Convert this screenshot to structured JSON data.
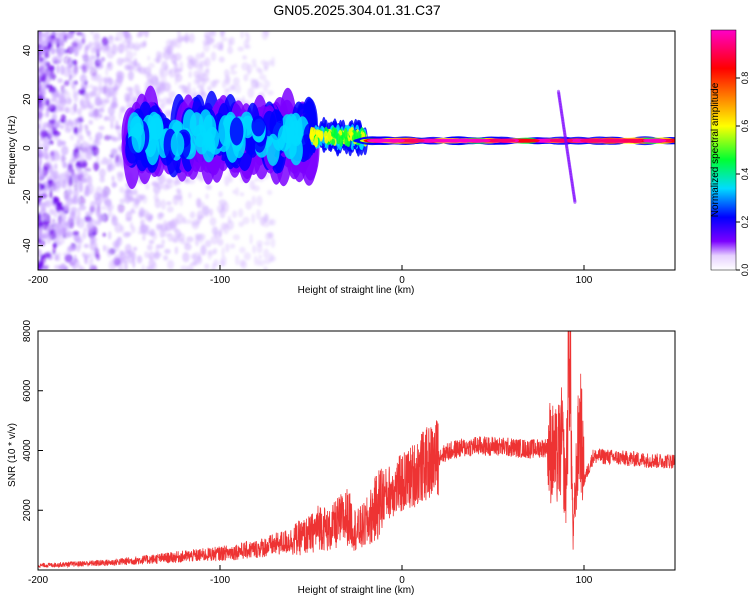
{
  "figure": {
    "title": "GN05.2025.304.01.31.C37"
  },
  "chart_data": [
    {
      "type": "heatmap",
      "title": "",
      "xlabel": "Height of straight line (km)",
      "ylabel": "Frequency (Hz)",
      "xlim": [
        -200,
        150
      ],
      "ylim": [
        -50,
        48
      ],
      "xticks": [
        -200,
        -100,
        0,
        100
      ],
      "yticks": [
        -40,
        -20,
        0,
        20,
        40
      ],
      "colorbar": {
        "label": "Normalized spectral amplitude",
        "range": [
          0,
          1
        ],
        "ticks": [
          "0.0",
          "0.2",
          "0.4",
          "0.6",
          "0.8"
        ],
        "colors": [
          "#ffffff",
          "#7b00ff",
          "#0000ff",
          "#00dcff",
          "#00ff32",
          "#ffff00",
          "#ff8000",
          "#ff0000",
          "#ff0064",
          "#ff00c8"
        ]
      },
      "features": [
        {
          "name": "background noise",
          "x_range": [
            -200,
            -70
          ],
          "y_range": [
            -50,
            48
          ],
          "amplitude": 0.15
        },
        {
          "name": "signal band",
          "x_range": [
            -150,
            -50
          ],
          "y_range": [
            -5,
            14
          ],
          "amplitude": 0.3
        },
        {
          "name": "signal band",
          "x_range": [
            -50,
            -20
          ],
          "y_range": [
            1,
            8
          ],
          "amplitude": 0.5
        },
        {
          "name": "signal band",
          "x_range": [
            -20,
            150
          ],
          "y_range": [
            2,
            4
          ],
          "amplitude": 0.95
        },
        {
          "name": "vertical streak",
          "x_range": [
            86,
            96
          ],
          "y_range": [
            -22,
            23
          ],
          "amplitude": 0.2
        }
      ]
    },
    {
      "type": "line",
      "title": "",
      "xlabel": "Height of straight line (km)",
      "ylabel": "SNR (10 * v/v)",
      "xlim": [
        -200,
        150
      ],
      "ylim": [
        0,
        8000
      ],
      "xticks": [
        -200,
        -100,
        0,
        100
      ],
      "yticks": [
        2000,
        4000,
        6000,
        8000
      ],
      "color": "#ee3333",
      "x": [
        -200,
        -180,
        -160,
        -140,
        -120,
        -100,
        -80,
        -70,
        -60,
        -50,
        -45,
        -40,
        -35,
        -30,
        -25,
        -20,
        -15,
        -10,
        -5,
        0,
        5,
        10,
        15,
        20,
        25,
        30,
        40,
        50,
        60,
        70,
        80,
        85,
        88,
        90,
        92,
        94,
        96,
        98,
        100,
        105,
        110,
        120,
        130,
        140,
        150
      ],
      "y": [
        150,
        200,
        250,
        350,
        450,
        550,
        700,
        850,
        1000,
        1200,
        1500,
        1300,
        1600,
        1800,
        1300,
        1500,
        2000,
        2500,
        2700,
        2900,
        3100,
        3400,
        3600,
        3800,
        3950,
        4050,
        4150,
        4150,
        4100,
        4050,
        4100,
        3700,
        4300,
        2500,
        8000,
        1000,
        3500,
        5000,
        3000,
        3800,
        3800,
        3750,
        3700,
        3650,
        3650
      ]
    }
  ]
}
